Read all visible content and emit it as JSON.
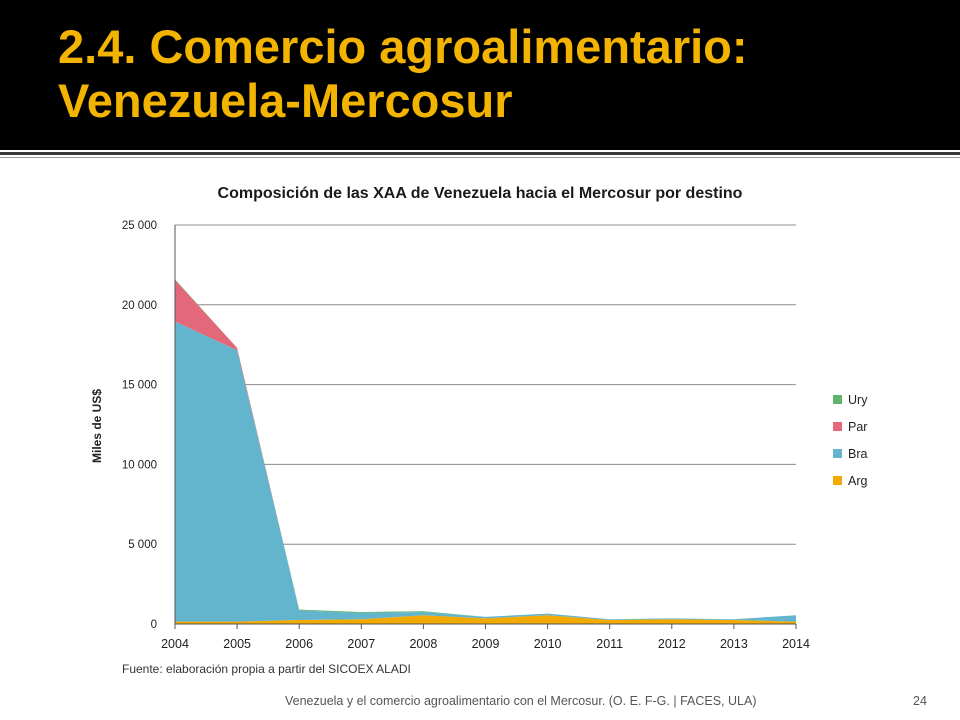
{
  "slide": {
    "title": "2.4. Comercio agroalimentario: Venezuela-Mercosur",
    "source": "Fuente: elaboración propia a partir del SICOEX ALADI",
    "footer": "Venezuela y el comercio agroalimentario con el Mercosur. (O. E. F-G. | FACES, ULA)",
    "page_number": "24"
  },
  "colors": {
    "title": "#f2b400",
    "Arg": "#f2a900",
    "Bra": "#62b5cc",
    "Par": "#e3687a",
    "Ury": "#5fb36b",
    "grid": "#8c8c8c"
  },
  "chart_data": {
    "type": "area",
    "stacked": true,
    "title": "Composición de las XAA de Venezuela hacia el Mercosur por destino",
    "xlabel": "",
    "ylabel": "Miles de US$",
    "ylim": [
      0,
      25000
    ],
    "yticks": [
      "0",
      "5 000",
      "10 000",
      "15 000",
      "20 000",
      "25 000"
    ],
    "ytick_values": [
      0,
      5000,
      10000,
      15000,
      20000,
      25000
    ],
    "categories": [
      "2004",
      "2005",
      "2006",
      "2007",
      "2008",
      "2009",
      "2010",
      "2011",
      "2012",
      "2013",
      "2014"
    ],
    "legend_position": "right",
    "grid": true,
    "series": [
      {
        "name": "Arg",
        "values": [
          150,
          150,
          250,
          300,
          550,
          350,
          550,
          250,
          300,
          250,
          150
        ]
      },
      {
        "name": "Bra",
        "values": [
          18800,
          17000,
          600,
          400,
          200,
          100,
          100,
          50,
          50,
          50,
          400
        ]
      },
      {
        "name": "Par",
        "values": [
          2600,
          150,
          0,
          0,
          0,
          0,
          0,
          0,
          0,
          0,
          0
        ]
      },
      {
        "name": "Ury",
        "values": [
          50,
          0,
          50,
          50,
          50,
          0,
          0,
          0,
          0,
          0,
          0
        ]
      }
    ],
    "legend_order": [
      "Ury",
      "Par",
      "Bra",
      "Arg"
    ]
  }
}
